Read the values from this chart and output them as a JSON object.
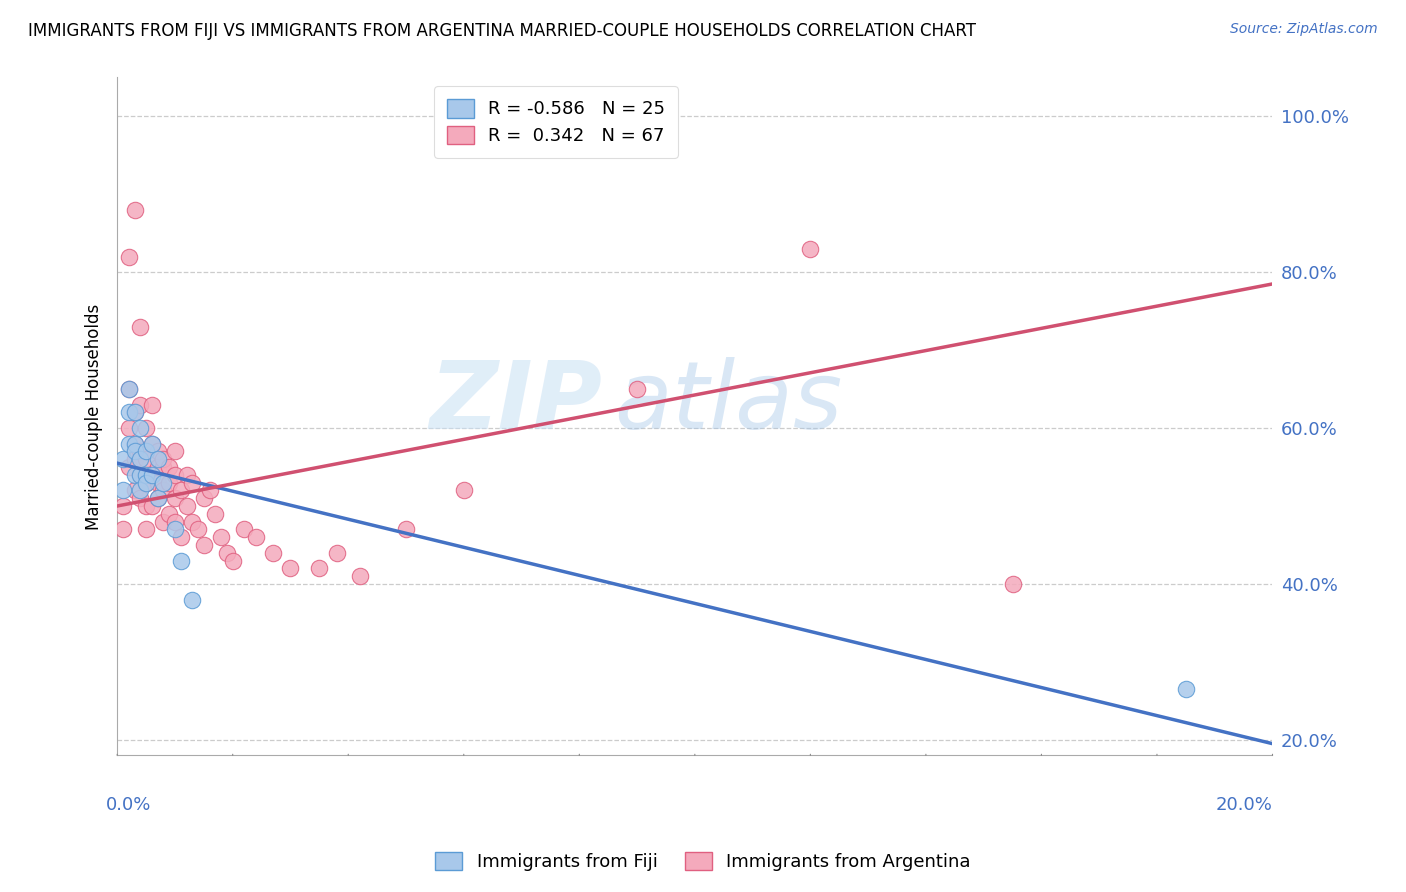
{
  "title": "IMMIGRANTS FROM FIJI VS IMMIGRANTS FROM ARGENTINA MARRIED-COUPLE HOUSEHOLDS CORRELATION CHART",
  "source": "Source: ZipAtlas.com",
  "ylabel": "Married-couple Households",
  "yticks": [
    0.2,
    0.4,
    0.6,
    0.8,
    1.0
  ],
  "ytick_labels": [
    "20.0%",
    "40.0%",
    "60.0%",
    "80.0%",
    "100.0%"
  ],
  "xlim": [
    0.0,
    0.2
  ],
  "ylim": [
    0.18,
    1.05
  ],
  "fiji_color": "#A8C8EA",
  "fiji_edge_color": "#5B9BD5",
  "argentina_color": "#F4AABC",
  "argentina_edge_color": "#E06080",
  "fiji_R": -0.586,
  "fiji_N": 25,
  "argentina_R": 0.342,
  "argentina_N": 67,
  "fiji_line_color": "#4472C4",
  "argentina_line_color": "#D05070",
  "watermark_zip": "ZIP",
  "watermark_atlas": "atlas",
  "fiji_line_x0": 0.0,
  "fiji_line_y0": 0.555,
  "fiji_line_x1": 0.2,
  "fiji_line_y1": 0.195,
  "arg_line_x0": 0.0,
  "arg_line_y0": 0.5,
  "arg_line_x1": 0.2,
  "arg_line_y1": 0.785,
  "fiji_points_x": [
    0.001,
    0.001,
    0.002,
    0.002,
    0.002,
    0.003,
    0.003,
    0.003,
    0.003,
    0.004,
    0.004,
    0.004,
    0.004,
    0.005,
    0.005,
    0.005,
    0.006,
    0.006,
    0.007,
    0.007,
    0.008,
    0.01,
    0.011,
    0.013,
    0.185
  ],
  "fiji_points_y": [
    0.52,
    0.56,
    0.58,
    0.62,
    0.65,
    0.54,
    0.58,
    0.62,
    0.57,
    0.54,
    0.56,
    0.6,
    0.52,
    0.54,
    0.57,
    0.53,
    0.54,
    0.58,
    0.51,
    0.56,
    0.53,
    0.47,
    0.43,
    0.38,
    0.265
  ],
  "argentina_points_x": [
    0.001,
    0.001,
    0.002,
    0.002,
    0.002,
    0.002,
    0.003,
    0.003,
    0.003,
    0.003,
    0.003,
    0.004,
    0.004,
    0.004,
    0.004,
    0.004,
    0.005,
    0.005,
    0.005,
    0.005,
    0.005,
    0.005,
    0.006,
    0.006,
    0.006,
    0.006,
    0.007,
    0.007,
    0.007,
    0.007,
    0.008,
    0.008,
    0.008,
    0.008,
    0.009,
    0.009,
    0.009,
    0.01,
    0.01,
    0.01,
    0.01,
    0.011,
    0.011,
    0.012,
    0.012,
    0.013,
    0.013,
    0.014,
    0.015,
    0.015,
    0.016,
    0.017,
    0.018,
    0.019,
    0.02,
    0.022,
    0.024,
    0.027,
    0.03,
    0.035,
    0.038,
    0.042,
    0.05,
    0.06,
    0.09,
    0.12,
    0.155
  ],
  "argentina_points_y": [
    0.5,
    0.47,
    0.55,
    0.6,
    0.65,
    0.82,
    0.52,
    0.56,
    0.58,
    0.62,
    0.88,
    0.51,
    0.54,
    0.57,
    0.63,
    0.73,
    0.5,
    0.53,
    0.56,
    0.6,
    0.47,
    0.53,
    0.54,
    0.58,
    0.5,
    0.63,
    0.53,
    0.57,
    0.51,
    0.55,
    0.52,
    0.55,
    0.48,
    0.56,
    0.53,
    0.49,
    0.55,
    0.51,
    0.54,
    0.48,
    0.57,
    0.52,
    0.46,
    0.5,
    0.54,
    0.48,
    0.53,
    0.47,
    0.51,
    0.45,
    0.52,
    0.49,
    0.46,
    0.44,
    0.43,
    0.47,
    0.46,
    0.44,
    0.42,
    0.42,
    0.44,
    0.41,
    0.47,
    0.52,
    0.65,
    0.83,
    0.4
  ]
}
